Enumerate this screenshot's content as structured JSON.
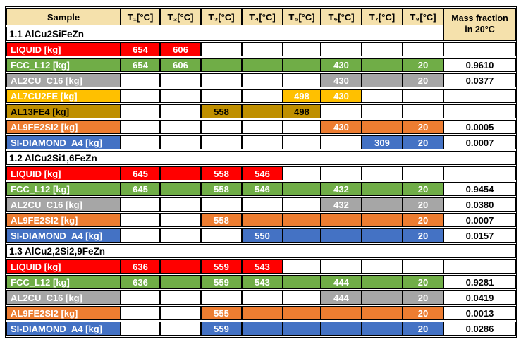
{
  "table": {
    "columns": [
      "Sample",
      "T₁[°C]",
      "T₂[°C]",
      "T₃[°C]",
      "T₄[°C]",
      "T₅[°C]",
      "T₆[°C]",
      "T₇[°C]",
      "T₈[°C]"
    ],
    "mass_header": {
      "line1": "Mass fraction",
      "line2": "in 20°C"
    },
    "sections": [
      {
        "title": "1.1 AlCu2SiFeZn",
        "rows": [
          {
            "label": "LIQUID [kg]",
            "color": "red",
            "values": [
              "654",
              "606",
              "",
              "",
              "",
              "",
              "",
              ""
            ],
            "filled": [
              true,
              true,
              false,
              false,
              false,
              false,
              false,
              false
            ],
            "mass": ""
          },
          {
            "label": "FCC_L12 [kg]",
            "color": "green",
            "values": [
              "654",
              "606",
              "",
              "",
              "",
              "430",
              "",
              "20"
            ],
            "filled": [
              true,
              true,
              true,
              true,
              true,
              true,
              true,
              true
            ],
            "mass": "0.9610"
          },
          {
            "label": "AL2CU_C16 [kg]",
            "color": "gray",
            "values": [
              "",
              "",
              "",
              "",
              "",
              "430",
              "",
              "20"
            ],
            "filled": [
              false,
              false,
              false,
              false,
              false,
              true,
              true,
              true
            ],
            "mass": "0.0377"
          },
          {
            "label": "AL7CU2FE [kg]",
            "color": "yellow",
            "values": [
              "",
              "",
              "",
              "",
              "498",
              "430",
              "",
              ""
            ],
            "filled": [
              false,
              false,
              false,
              false,
              true,
              true,
              false,
              false
            ],
            "mass": ""
          },
          {
            "label": "AL13FE4 [kg]",
            "color": "dark_gold",
            "values": [
              "",
              "",
              "558",
              "",
              "498",
              "",
              "",
              ""
            ],
            "filled": [
              false,
              false,
              true,
              true,
              true,
              false,
              false,
              false
            ],
            "mass": ""
          },
          {
            "label": "AL9FE2SI2 [kg]",
            "color": "orange",
            "values": [
              "",
              "",
              "",
              "",
              "",
              "430",
              "",
              "20"
            ],
            "filled": [
              false,
              false,
              false,
              false,
              false,
              true,
              true,
              true
            ],
            "mass": "0.0005"
          },
          {
            "label": "SI-DIAMOND_A4 [kg]",
            "color": "blue",
            "values": [
              "",
              "",
              "",
              "",
              "",
              "",
              "309",
              "20"
            ],
            "filled": [
              false,
              false,
              false,
              false,
              false,
              false,
              true,
              true
            ],
            "mass": "0.0007"
          }
        ]
      },
      {
        "title": "1.2 AlCu2Si1,6FeZn",
        "rows": [
          {
            "label": "LIQUID [kg]",
            "color": "red",
            "values": [
              "645",
              "",
              "558",
              "546",
              "",
              "",
              "",
              ""
            ],
            "filled": [
              true,
              true,
              true,
              true,
              false,
              false,
              false,
              false
            ],
            "mass": ""
          },
          {
            "label": "FCC_L12 [kg]",
            "color": "green",
            "values": [
              "645",
              "",
              "558",
              "546",
              "",
              "432",
              "",
              "20"
            ],
            "filled": [
              true,
              true,
              true,
              true,
              true,
              true,
              true,
              true
            ],
            "mass": "0.9454"
          },
          {
            "label": "AL2CU_C16 [kg]",
            "color": "gray",
            "values": [
              "",
              "",
              "",
              "",
              "",
              "432",
              "",
              "20"
            ],
            "filled": [
              false,
              false,
              false,
              false,
              false,
              true,
              true,
              true
            ],
            "mass": "0.0380"
          },
          {
            "label": "AL9FE2SI2 [kg]",
            "color": "orange",
            "values": [
              "",
              "",
              "558",
              "",
              "",
              "",
              "",
              "20"
            ],
            "filled": [
              false,
              false,
              true,
              true,
              true,
              true,
              true,
              true
            ],
            "mass": "0.0007"
          },
          {
            "label": "SI-DIAMOND_A4 [kg]",
            "color": "blue",
            "values": [
              "",
              "",
              "",
              "550",
              "",
              "",
              "",
              "20"
            ],
            "filled": [
              false,
              false,
              false,
              true,
              true,
              true,
              true,
              true
            ],
            "mass": "0.0157"
          }
        ]
      },
      {
        "title": "1.3 AlCu2,2Si2,9FeZn",
        "rows": [
          {
            "label": "LIQUID [kg]",
            "color": "red",
            "values": [
              "636",
              "",
              "559",
              "543",
              "",
              "",
              "",
              ""
            ],
            "filled": [
              true,
              true,
              true,
              true,
              false,
              false,
              false,
              false
            ],
            "mass": ""
          },
          {
            "label": "FCC_L12 [kg]",
            "color": "green",
            "values": [
              "636",
              "",
              "559",
              "543",
              "",
              "444",
              "",
              "20"
            ],
            "filled": [
              true,
              true,
              true,
              true,
              true,
              true,
              true,
              true
            ],
            "mass": "0.9281"
          },
          {
            "label": "AL2CU_C16 [kg]",
            "color": "gray",
            "values": [
              "",
              "",
              "",
              "",
              "",
              "444",
              "",
              "20"
            ],
            "filled": [
              false,
              false,
              false,
              false,
              false,
              true,
              true,
              true
            ],
            "mass": "0.0419"
          },
          {
            "label": "AL9FE2SI2 [kg]",
            "color": "orange",
            "values": [
              "",
              "",
              "555",
              "",
              "",
              "",
              "",
              "20"
            ],
            "filled": [
              false,
              false,
              true,
              true,
              true,
              true,
              true,
              true
            ],
            "mass": "0.0013"
          },
          {
            "label": "SI-DIAMOND_A4 [kg]",
            "color": "blue",
            "values": [
              "",
              "",
              "559",
              "",
              "",
              "",
              "",
              "20"
            ],
            "filled": [
              false,
              false,
              true,
              true,
              true,
              true,
              true,
              true
            ],
            "mass": "0.0286"
          }
        ]
      }
    ]
  },
  "colors": {
    "header_bg": "#F5E1AC",
    "red": "#FF0000",
    "green": "#70AD47",
    "gray": "#A6A6A6",
    "yellow": "#FFC000",
    "dark_gold": "#BF8F00",
    "orange": "#ED7D31",
    "blue": "#4472C4",
    "border": "#000000",
    "text_on_fill": "#FFFFFF",
    "text_on_dark_gold": "#000000"
  }
}
